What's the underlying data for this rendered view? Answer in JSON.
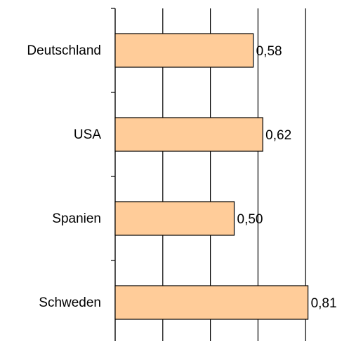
{
  "chart_data": {
    "type": "barh",
    "categories": [
      "Deutschland",
      "USA",
      "Spanien",
      "Schweden"
    ],
    "values": [
      0.58,
      0.62,
      0.5,
      0.81
    ],
    "value_labels": [
      "0,58",
      "0,62",
      "0,50",
      "0,81"
    ],
    "color": "#ffcc99",
    "xlim": [
      0,
      1
    ],
    "xticks": [
      0,
      0.2,
      0.4,
      0.6,
      0.8
    ],
    "grid": true
  }
}
